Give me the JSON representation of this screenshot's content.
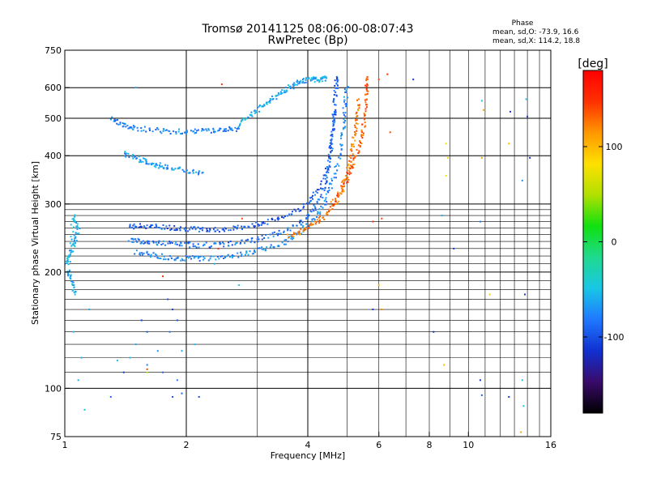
{
  "chart_data": {
    "type": "scatter",
    "title": "Tromsø 20141125 08:06:00-08:07:43",
    "subtitle": "RwPretec (Bp)",
    "phase_info": {
      "heading": "Phase",
      "line_o": "mean, sd,O: -73.9, 16.6",
      "line_x": "mean, sd,X: 114.2, 18.8"
    },
    "xlabel": "Frequency [MHz]",
    "ylabel": "Stationary phase Virtual Height [km]",
    "x_scale": "log",
    "y_scale": "log",
    "xlim": [
      1,
      16
    ],
    "ylim": [
      75,
      750
    ],
    "x_ticks": [
      1,
      2,
      4,
      6,
      8,
      10,
      16
    ],
    "y_ticks": [
      75,
      100,
      200,
      300,
      400,
      500,
      600,
      750
    ],
    "x_grid": [
      2,
      4
    ],
    "x_grid_minor": [
      3,
      5,
      6,
      7,
      8,
      9,
      10,
      11,
      12,
      13,
      14,
      15
    ],
    "y_grid": [
      100,
      200,
      300,
      400,
      500,
      600
    ],
    "y_grid_minor": [
      110,
      120,
      130,
      140,
      150,
      160,
      170,
      180,
      190,
      210,
      220,
      230,
      240,
      250,
      260,
      270,
      280,
      290
    ],
    "grid": true,
    "colorbar": {
      "label": "[deg]",
      "range": [
        -180,
        180
      ],
      "ticks": [
        100,
        0,
        -100
      ],
      "colormap": [
        "#000000",
        "#3a0a6a",
        "#1030d0",
        "#1f78ff",
        "#19c6e6",
        "#1fd98f",
        "#10e010",
        "#b0e000",
        "#ffe000",
        "#ff9800",
        "#ff3000",
        "#ff0000"
      ]
    },
    "traces": [
      {
        "name": "",
        "phase": -95,
        "points": [
          [
            1.45,
            262
          ],
          [
            1.55,
            263
          ],
          [
            1.7,
            262
          ],
          [
            1.9,
            260
          ],
          [
            2.1,
            258
          ],
          [
            2.3,
            257
          ],
          [
            2.6,
            259
          ],
          [
            2.9,
            263
          ],
          [
            3.2,
            270
          ],
          [
            3.6,
            282
          ],
          [
            4.0,
            300
          ],
          [
            4.3,
            330
          ],
          [
            4.5,
            380
          ],
          [
            4.6,
            450
          ],
          [
            4.65,
            520
          ],
          [
            4.7,
            600
          ],
          [
            4.72,
            640
          ]
        ]
      },
      {
        "name": "",
        "phase": -85,
        "points": [
          [
            1.45,
            242
          ],
          [
            1.55,
            240
          ],
          [
            1.7,
            238
          ],
          [
            1.9,
            236
          ],
          [
            2.1,
            235
          ],
          [
            2.4,
            235
          ],
          [
            2.7,
            238
          ],
          [
            3.0,
            243
          ],
          [
            3.4,
            252
          ],
          [
            3.8,
            265
          ],
          [
            4.1,
            285
          ],
          [
            4.35,
            320
          ],
          [
            4.5,
            370
          ],
          [
            4.6,
            440
          ],
          [
            4.66,
            520
          ]
        ]
      },
      {
        "name": "",
        "phase": -75,
        "points": [
          [
            1.5,
            225
          ],
          [
            1.65,
            221
          ],
          [
            1.8,
            218
          ],
          [
            2.0,
            217
          ],
          [
            2.2,
            217
          ],
          [
            2.5,
            219
          ],
          [
            2.8,
            223
          ],
          [
            3.1,
            229
          ],
          [
            3.5,
            239
          ],
          [
            3.8,
            252
          ],
          [
            4.1,
            270
          ],
          [
            4.4,
            300
          ],
          [
            4.6,
            340
          ],
          [
            4.8,
            400
          ],
          [
            4.9,
            470
          ],
          [
            4.95,
            540
          ],
          [
            5.0,
            600
          ]
        ]
      },
      {
        "name": "",
        "phase": 125,
        "points": [
          [
            3.6,
            248
          ],
          [
            3.9,
            256
          ],
          [
            4.2,
            268
          ],
          [
            4.5,
            285
          ],
          [
            4.75,
            310
          ],
          [
            4.95,
            345
          ],
          [
            5.1,
            390
          ],
          [
            5.2,
            440
          ],
          [
            5.3,
            500
          ],
          [
            5.35,
            560
          ]
        ]
      },
      {
        "name": "",
        "phase": 135,
        "points": [
          [
            4.6,
            300
          ],
          [
            4.9,
            330
          ],
          [
            5.1,
            365
          ],
          [
            5.3,
            400
          ],
          [
            5.45,
            450
          ],
          [
            5.55,
            510
          ],
          [
            5.6,
            580
          ],
          [
            5.62,
            640
          ]
        ]
      },
      {
        "name": "",
        "phase": -60,
        "points": [
          [
            2.7,
            480
          ],
          [
            2.9,
            510
          ],
          [
            3.1,
            540
          ],
          [
            3.3,
            565
          ],
          [
            3.5,
            590
          ],
          [
            3.7,
            610
          ],
          [
            3.9,
            625
          ],
          [
            4.1,
            630
          ],
          [
            4.3,
            630
          ],
          [
            4.45,
            635
          ]
        ]
      },
      {
        "name": "",
        "phase": -80,
        "points": [
          [
            1.3,
            500
          ],
          [
            1.4,
            480
          ],
          [
            1.5,
            470
          ],
          [
            1.7,
            465
          ],
          [
            1.9,
            462
          ],
          [
            2.1,
            462
          ],
          [
            2.3,
            465
          ],
          [
            2.5,
            468
          ],
          [
            2.7,
            470
          ]
        ]
      },
      {
        "name": "",
        "phase": -70,
        "points": [
          [
            1.4,
            405
          ],
          [
            1.5,
            395
          ],
          [
            1.6,
            385
          ],
          [
            1.7,
            378
          ],
          [
            1.8,
            372
          ],
          [
            2.0,
            365
          ],
          [
            2.2,
            362
          ]
        ]
      },
      {
        "name": "",
        "phase": -55,
        "points": [
          [
            1.0,
            210
          ],
          [
            1.03,
            220
          ],
          [
            1.06,
            240
          ],
          [
            1.08,
            260
          ],
          [
            1.05,
            280
          ],
          [
            1.02,
            200
          ],
          [
            1.04,
            190
          ],
          [
            1.06,
            175
          ]
        ]
      }
    ],
    "scatter": [
      {
        "x": 1.55,
        "y": 150,
        "phase": -105
      },
      {
        "x": 1.6,
        "y": 140,
        "phase": -95
      },
      {
        "x": 1.5,
        "y": 130,
        "phase": -60
      },
      {
        "x": 1.45,
        "y": 120,
        "phase": -50
      },
      {
        "x": 1.6,
        "y": 115,
        "phase": -80
      },
      {
        "x": 1.7,
        "y": 125,
        "phase": -70
      },
      {
        "x": 1.75,
        "y": 110,
        "phase": -90
      },
      {
        "x": 1.4,
        "y": 110,
        "phase": -110
      },
      {
        "x": 1.35,
        "y": 118,
        "phase": -55
      },
      {
        "x": 1.8,
        "y": 170,
        "phase": -100
      },
      {
        "x": 1.85,
        "y": 160,
        "phase": -110
      },
      {
        "x": 1.9,
        "y": 150,
        "phase": -95
      },
      {
        "x": 1.82,
        "y": 140,
        "phase": -85
      },
      {
        "x": 1.95,
        "y": 125,
        "phase": -60
      },
      {
        "x": 1.9,
        "y": 105,
        "phase": -80
      },
      {
        "x": 1.85,
        "y": 95,
        "phase": -100
      },
      {
        "x": 1.95,
        "y": 97,
        "phase": -90
      },
      {
        "x": 2.1,
        "y": 130,
        "phase": -50
      },
      {
        "x": 2.15,
        "y": 95,
        "phase": -100
      },
      {
        "x": 1.05,
        "y": 140,
        "phase": -50
      },
      {
        "x": 1.1,
        "y": 120,
        "phase": -55
      },
      {
        "x": 1.08,
        "y": 105,
        "phase": -60
      },
      {
        "x": 1.12,
        "y": 88,
        "phase": -50
      },
      {
        "x": 1.3,
        "y": 95,
        "phase": -90
      },
      {
        "x": 1.15,
        "y": 160,
        "phase": -60
      },
      {
        "x": 1.6,
        "y": 110,
        "phase": 50
      },
      {
        "x": 1.6,
        "y": 112,
        "phase": 140
      },
      {
        "x": 1.75,
        "y": 195,
        "phase": 150
      },
      {
        "x": 2.4,
        "y": 230,
        "phase": 150
      },
      {
        "x": 2.7,
        "y": 185,
        "phase": -50
      },
      {
        "x": 2.75,
        "y": 275,
        "phase": 140
      },
      {
        "x": 2.45,
        "y": 612,
        "phase": 145
      },
      {
        "x": 6.3,
        "y": 650,
        "phase": 150
      },
      {
        "x": 7.3,
        "y": 630,
        "phase": -110
      },
      {
        "x": 6.0,
        "y": 630,
        "phase": 140
      },
      {
        "x": 6.4,
        "y": 460,
        "phase": 140
      },
      {
        "x": 5.8,
        "y": 270,
        "phase": 145
      },
      {
        "x": 6.1,
        "y": 275,
        "phase": 140
      },
      {
        "x": 5.8,
        "y": 160,
        "phase": -110
      },
      {
        "x": 6.1,
        "y": 160,
        "phase": 120
      },
      {
        "x": 6.0,
        "y": 185,
        "phase": 100
      },
      {
        "x": 8.2,
        "y": 140,
        "phase": -120
      },
      {
        "x": 8.6,
        "y": 280,
        "phase": -60
      },
      {
        "x": 8.8,
        "y": 430,
        "phase": 80
      },
      {
        "x": 8.8,
        "y": 355,
        "phase": 80
      },
      {
        "x": 8.9,
        "y": 395,
        "phase": 90
      },
      {
        "x": 8.7,
        "y": 115,
        "phase": 100
      },
      {
        "x": 9.2,
        "y": 230,
        "phase": -110
      },
      {
        "x": 10.8,
        "y": 555,
        "phase": -50
      },
      {
        "x": 10.9,
        "y": 525,
        "phase": 110
      },
      {
        "x": 10.8,
        "y": 395,
        "phase": 110
      },
      {
        "x": 10.7,
        "y": 270,
        "phase": -80
      },
      {
        "x": 10.7,
        "y": 105,
        "phase": -110
      },
      {
        "x": 10.8,
        "y": 96,
        "phase": -90
      },
      {
        "x": 11.3,
        "y": 175,
        "phase": 90
      },
      {
        "x": 12.6,
        "y": 430,
        "phase": 100
      },
      {
        "x": 12.7,
        "y": 520,
        "phase": -110
      },
      {
        "x": 12.6,
        "y": 95,
        "phase": -110
      },
      {
        "x": 14.0,
        "y": 505,
        "phase": -110
      },
      {
        "x": 13.6,
        "y": 345,
        "phase": -70
      },
      {
        "x": 13.8,
        "y": 175,
        "phase": -110
      },
      {
        "x": 13.6,
        "y": 105,
        "phase": -50
      },
      {
        "x": 13.7,
        "y": 90,
        "phase": -50
      },
      {
        "x": 14.2,
        "y": 395,
        "phase": -120
      },
      {
        "x": 13.9,
        "y": 560,
        "phase": -50
      },
      {
        "x": 13.5,
        "y": 77,
        "phase": 110
      },
      {
        "x": 1.5,
        "y": 600,
        "phase": -60
      },
      {
        "x": 2.35,
        "y": 210,
        "phase": -60
      }
    ]
  }
}
